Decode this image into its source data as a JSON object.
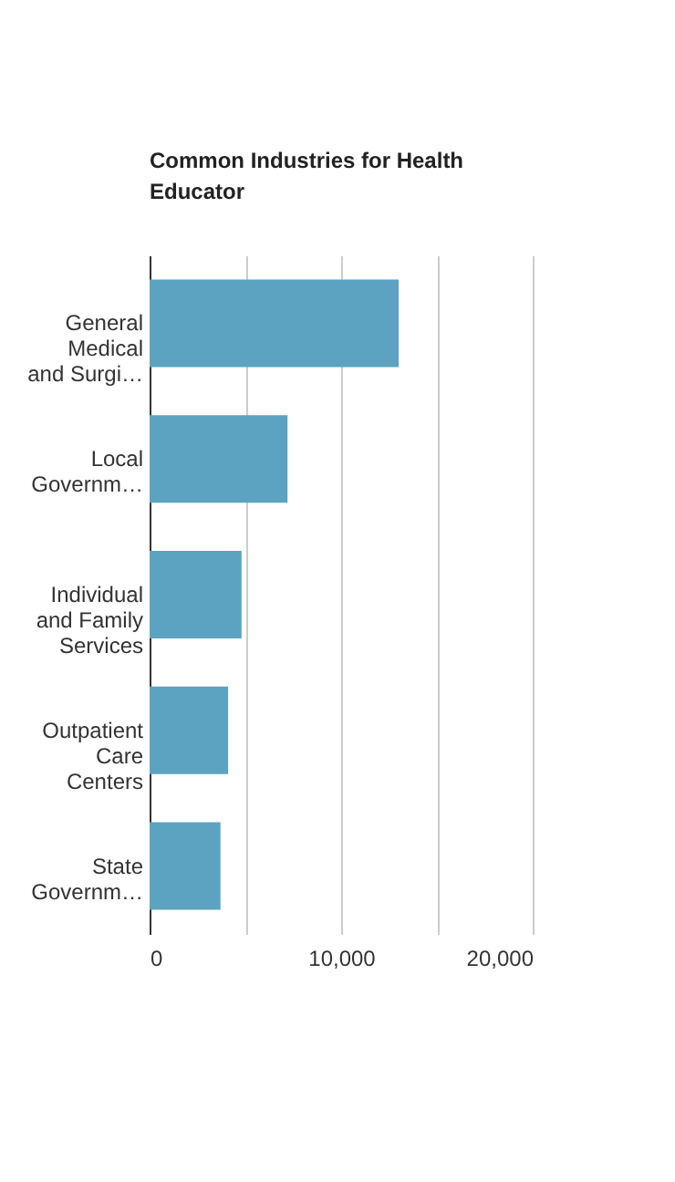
{
  "chart_data": {
    "type": "bar",
    "orientation": "horizontal",
    "title": "Common Industries for Health Educator",
    "categories": [
      "General Medical and Surgi…",
      "Local Governm…",
      "Individual and Family Services",
      "Outpatient Care Centers",
      "State Governm…"
    ],
    "values": [
      13000,
      7200,
      4800,
      4100,
      3700
    ],
    "color": "#5ba3c0",
    "xlim": [
      0,
      20000
    ],
    "xticks": [
      0,
      {
        "value": 5000,
        "label": null
      },
      {
        "value": 10000,
        "label": "10,000"
      },
      {
        "value": 15000,
        "label": null
      },
      {
        "value": 20000,
        "label": "20,000"
      }
    ],
    "grid": "x"
  }
}
